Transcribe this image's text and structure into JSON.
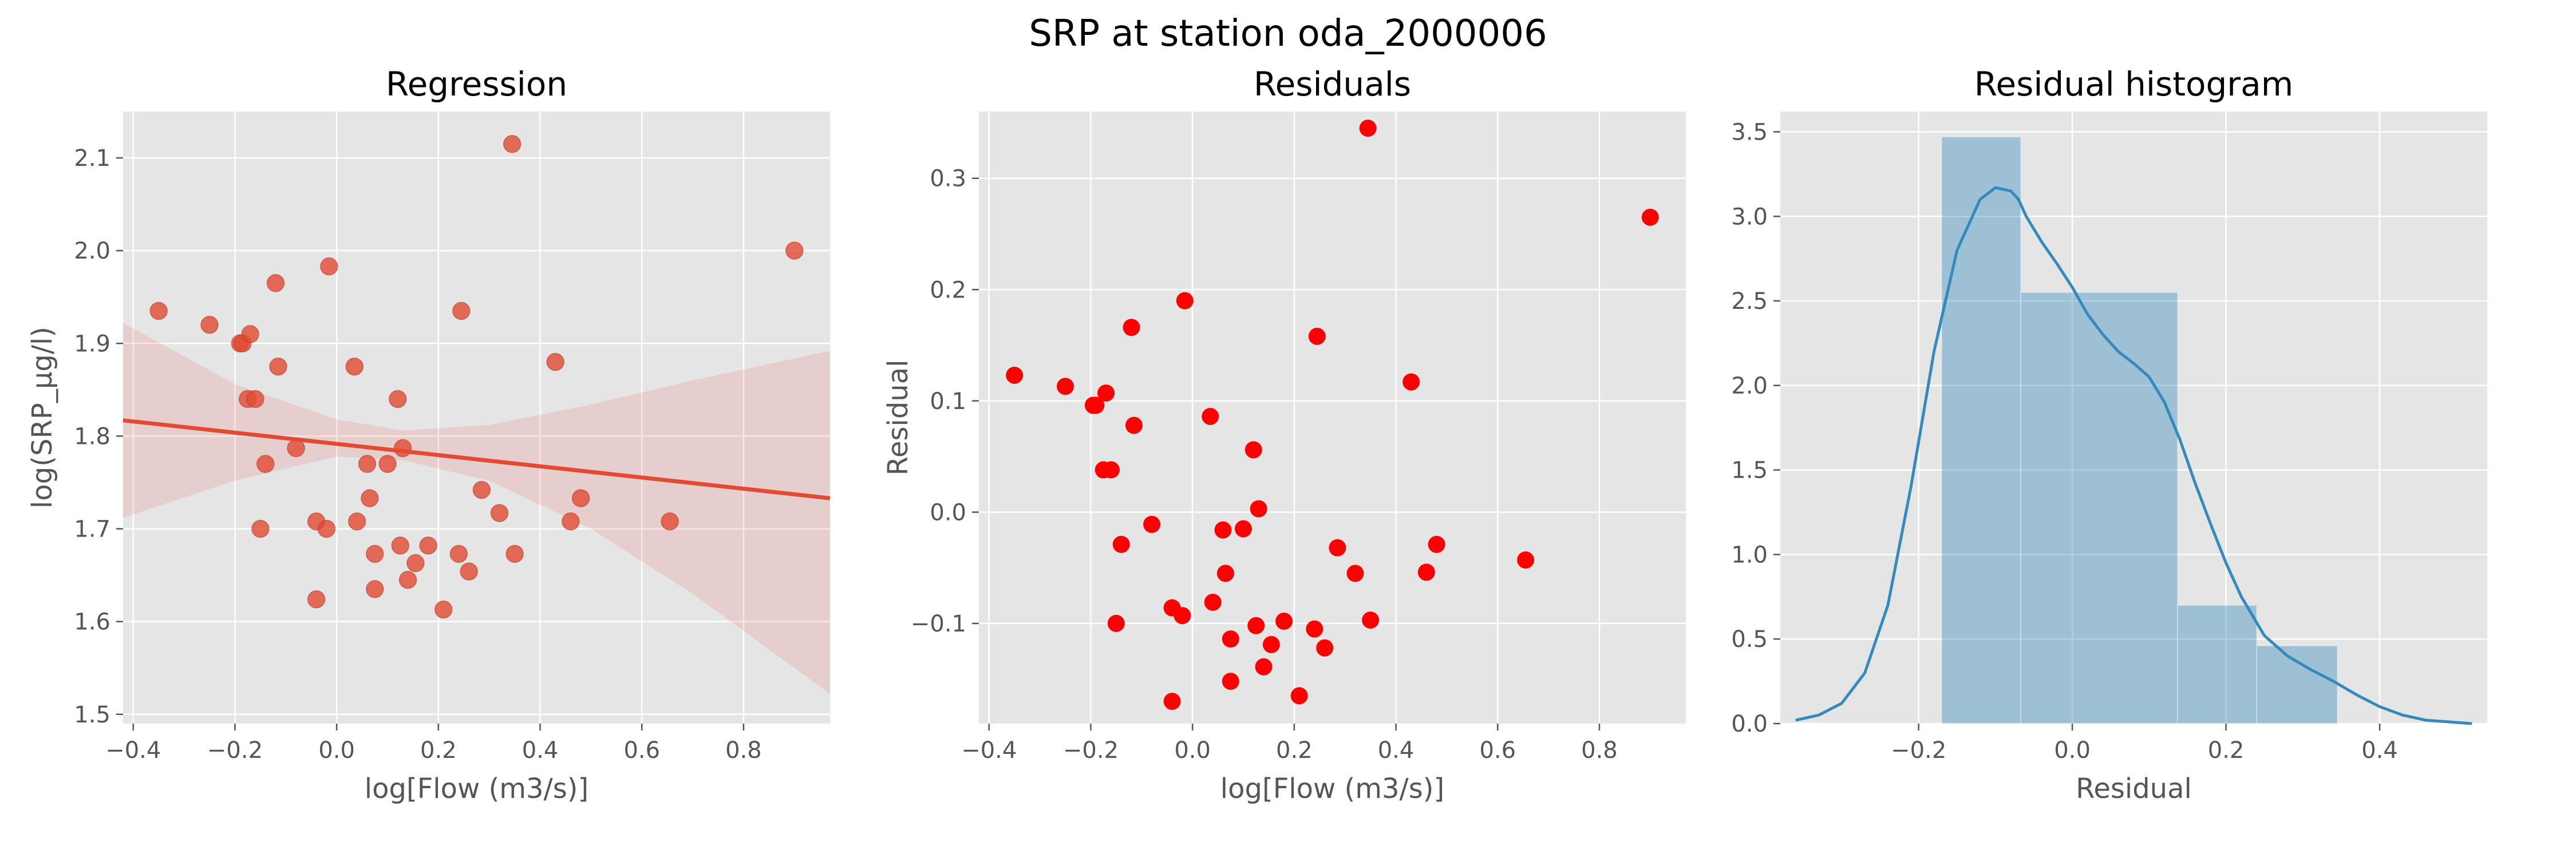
{
  "figure_title": "SRP at station oda_2000006",
  "chart_data": [
    {
      "type": "scatter",
      "title": "Regression",
      "xlabel": "log[Flow (m3/s)]",
      "ylabel": "log(SRP_μg/l)",
      "xlim": [
        -0.42,
        0.97
      ],
      "ylim": [
        1.49,
        2.15
      ],
      "xticks": [
        -0.4,
        -0.2,
        0.0,
        0.2,
        0.4,
        0.6,
        0.8
      ],
      "xtick_labels": [
        "−0.4",
        "−0.2",
        "0.0",
        "0.2",
        "0.4",
        "0.6",
        "0.8"
      ],
      "yticks": [
        1.5,
        1.6,
        1.7,
        1.8,
        1.9,
        2.0,
        2.1
      ],
      "ytick_labels": [
        "1.5",
        "1.6",
        "1.7",
        "1.8",
        "1.9",
        "2.0",
        "2.1"
      ],
      "grid": true,
      "points": [
        [
          -0.35,
          1.935
        ],
        [
          -0.25,
          1.92
        ],
        [
          -0.19,
          1.9
        ],
        [
          -0.185,
          1.9
        ],
        [
          -0.17,
          1.91
        ],
        [
          -0.175,
          1.84
        ],
        [
          -0.16,
          1.84
        ],
        [
          -0.14,
          1.77
        ],
        [
          -0.15,
          1.7
        ],
        [
          -0.12,
          1.965
        ],
        [
          -0.115,
          1.875
        ],
        [
          -0.08,
          1.787
        ],
        [
          -0.04,
          1.708
        ],
        [
          -0.04,
          1.624
        ],
        [
          -0.015,
          1.983
        ],
        [
          -0.02,
          1.7
        ],
        [
          0.035,
          1.875
        ],
        [
          0.04,
          1.708
        ],
        [
          0.06,
          1.77
        ],
        [
          0.065,
          1.733
        ],
        [
          0.075,
          1.673
        ],
        [
          0.075,
          1.635
        ],
        [
          0.1,
          1.77
        ],
        [
          0.12,
          1.84
        ],
        [
          0.125,
          1.682
        ],
        [
          0.13,
          1.787
        ],
        [
          0.14,
          1.645
        ],
        [
          0.155,
          1.663
        ],
        [
          0.18,
          1.682
        ],
        [
          0.21,
          1.613
        ],
        [
          0.24,
          1.673
        ],
        [
          0.245,
          1.935
        ],
        [
          0.26,
          1.654
        ],
        [
          0.285,
          1.742
        ],
        [
          0.32,
          1.717
        ],
        [
          0.345,
          2.115
        ],
        [
          0.35,
          1.673
        ],
        [
          0.43,
          1.88
        ],
        [
          0.46,
          1.708
        ],
        [
          0.48,
          1.733
        ],
        [
          0.655,
          1.708
        ],
        [
          0.9,
          2.0
        ]
      ],
      "fit_line": {
        "x": [
          -0.42,
          0.97
        ],
        "y": [
          1.817,
          1.733
        ]
      },
      "ci_band": {
        "x": [
          -0.42,
          -0.2,
          0.0,
          0.13,
          0.3,
          0.5,
          0.7,
          0.97
        ],
        "upper": [
          1.922,
          1.856,
          1.818,
          1.806,
          1.812,
          1.834,
          1.86,
          1.892
        ],
        "lower": [
          1.712,
          1.752,
          1.778,
          1.774,
          1.752,
          1.7,
          1.63,
          1.522
        ]
      },
      "colors": {
        "points": "#E24A33",
        "line": "#E24A33",
        "band": "#E24A33"
      }
    },
    {
      "type": "scatter",
      "title": "Residuals",
      "xlabel": "log[Flow (m3/s)]",
      "ylabel": "Residual",
      "xlim": [
        -0.42,
        0.97
      ],
      "ylim": [
        -0.19,
        0.36
      ],
      "xticks": [
        -0.4,
        -0.2,
        0.0,
        0.2,
        0.4,
        0.6,
        0.8
      ],
      "xtick_labels": [
        "−0.4",
        "−0.2",
        "0.0",
        "0.2",
        "0.4",
        "0.6",
        "0.8"
      ],
      "yticks": [
        -0.1,
        0.0,
        0.1,
        0.2,
        0.3
      ],
      "ytick_labels": [
        "−0.1",
        "0.0",
        "0.1",
        "0.2",
        "0.3"
      ],
      "grid": true,
      "points": [
        [
          -0.35,
          0.123
        ],
        [
          -0.25,
          0.113
        ],
        [
          -0.195,
          0.096
        ],
        [
          -0.19,
          0.096
        ],
        [
          -0.17,
          0.107
        ],
        [
          -0.175,
          0.038
        ],
        [
          -0.16,
          0.038
        ],
        [
          -0.14,
          -0.029
        ],
        [
          -0.15,
          -0.1
        ],
        [
          -0.12,
          0.166
        ],
        [
          -0.115,
          0.078
        ],
        [
          -0.08,
          -0.011
        ],
        [
          -0.04,
          -0.086
        ],
        [
          -0.04,
          -0.17
        ],
        [
          -0.015,
          0.19
        ],
        [
          -0.02,
          -0.093
        ],
        [
          0.035,
          0.086
        ],
        [
          0.04,
          -0.081
        ],
        [
          0.06,
          -0.016
        ],
        [
          0.065,
          -0.055
        ],
        [
          0.075,
          -0.114
        ],
        [
          0.075,
          -0.152
        ],
        [
          0.1,
          -0.015
        ],
        [
          0.12,
          0.056
        ],
        [
          0.125,
          -0.102
        ],
        [
          0.13,
          0.003
        ],
        [
          0.14,
          -0.139
        ],
        [
          0.155,
          -0.119
        ],
        [
          0.18,
          -0.098
        ],
        [
          0.21,
          -0.165
        ],
        [
          0.24,
          -0.105
        ],
        [
          0.245,
          0.158
        ],
        [
          0.26,
          -0.122
        ],
        [
          0.285,
          -0.032
        ],
        [
          0.32,
          -0.055
        ],
        [
          0.345,
          0.345
        ],
        [
          0.35,
          -0.097
        ],
        [
          0.43,
          0.117
        ],
        [
          0.46,
          -0.054
        ],
        [
          0.48,
          -0.029
        ],
        [
          0.655,
          -0.043
        ],
        [
          0.9,
          0.265
        ]
      ],
      "colors": {
        "points": "#FF0000"
      }
    },
    {
      "type": "bar",
      "title": "Residual histogram",
      "xlabel": "Residual",
      "ylabel": "",
      "xlim": [
        -0.38,
        0.54
      ],
      "ylim": [
        0.0,
        3.62
      ],
      "xticks": [
        -0.2,
        0.0,
        0.2,
        0.4
      ],
      "xtick_labels": [
        "−0.2",
        "0.0",
        "0.2",
        "0.4"
      ],
      "yticks": [
        0.0,
        0.5,
        1.0,
        1.5,
        2.0,
        2.5,
        3.0,
        3.5
      ],
      "ytick_labels": [
        "0.0",
        "0.5",
        "1.0",
        "1.5",
        "2.0",
        "2.5",
        "3.0",
        "3.5"
      ],
      "grid": true,
      "bins": [
        {
          "x0": -0.17,
          "x1": -0.067,
          "value": 3.47
        },
        {
          "x0": -0.067,
          "x1": 0.137,
          "value": 2.55
        },
        {
          "x0": 0.137,
          "x1": 0.24,
          "value": 0.7
        },
        {
          "x0": 0.24,
          "x1": 0.345,
          "value": 0.46
        }
      ],
      "kde": {
        "x": [
          -0.36,
          -0.33,
          -0.3,
          -0.27,
          -0.24,
          -0.21,
          -0.18,
          -0.15,
          -0.12,
          -0.1,
          -0.08,
          -0.07,
          -0.06,
          -0.04,
          -0.02,
          0.0,
          0.02,
          0.04,
          0.06,
          0.08,
          0.1,
          0.12,
          0.14,
          0.16,
          0.18,
          0.2,
          0.22,
          0.25,
          0.28,
          0.31,
          0.34,
          0.37,
          0.4,
          0.43,
          0.46,
          0.49,
          0.52
        ],
        "y": [
          0.02,
          0.05,
          0.12,
          0.3,
          0.7,
          1.4,
          2.2,
          2.8,
          3.1,
          3.17,
          3.15,
          3.1,
          3.0,
          2.85,
          2.72,
          2.58,
          2.42,
          2.3,
          2.2,
          2.13,
          2.05,
          1.9,
          1.68,
          1.42,
          1.18,
          0.95,
          0.75,
          0.52,
          0.4,
          0.32,
          0.25,
          0.17,
          0.1,
          0.05,
          0.02,
          0.01,
          0.0
        ]
      },
      "colors": {
        "bars": "#348ABD",
        "kde": "#348ABD"
      }
    }
  ],
  "style": {
    "axes_bg": "#E5E5E5",
    "grid": "#FFFFFF",
    "tick_text": "#555555"
  }
}
